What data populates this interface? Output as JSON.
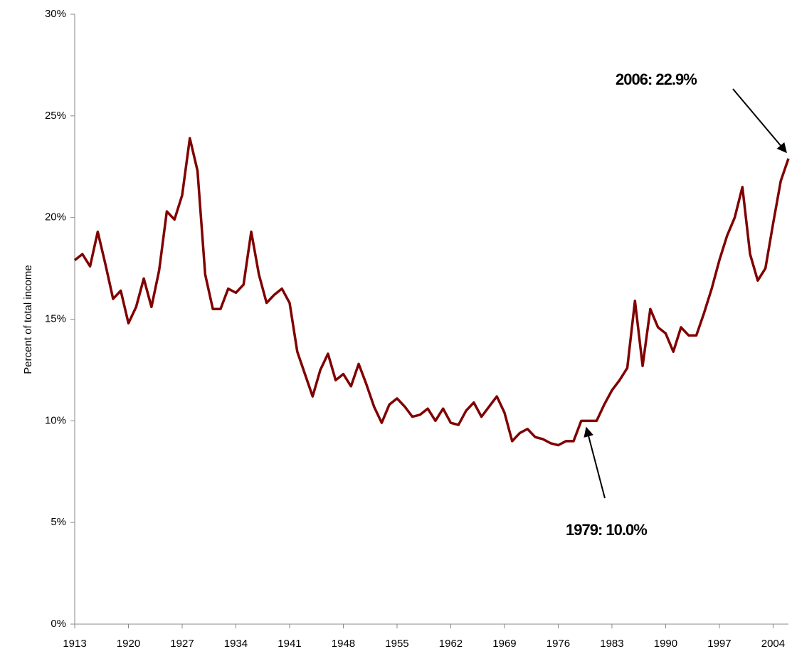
{
  "chart_data": {
    "type": "line",
    "y_label": "Percent of total income",
    "x": [
      1913,
      1914,
      1915,
      1916,
      1917,
      1918,
      1919,
      1920,
      1921,
      1922,
      1923,
      1924,
      1925,
      1926,
      1927,
      1928,
      1929,
      1930,
      1931,
      1932,
      1933,
      1934,
      1935,
      1936,
      1937,
      1938,
      1939,
      1940,
      1941,
      1942,
      1943,
      1944,
      1945,
      1946,
      1947,
      1948,
      1949,
      1950,
      1951,
      1952,
      1953,
      1954,
      1955,
      1956,
      1957,
      1958,
      1959,
      1960,
      1961,
      1962,
      1963,
      1964,
      1965,
      1966,
      1967,
      1968,
      1969,
      1970,
      1971,
      1972,
      1973,
      1974,
      1975,
      1976,
      1977,
      1978,
      1979,
      1980,
      1981,
      1982,
      1983,
      1984,
      1985,
      1986,
      1987,
      1988,
      1989,
      1990,
      1991,
      1992,
      1993,
      1994,
      1995,
      1996,
      1997,
      1998,
      1999,
      2000,
      2001,
      2002,
      2003,
      2004,
      2005,
      2006
    ],
    "series": [
      {
        "color": "#800000",
        "values": [
          17.9,
          18.2,
          17.6,
          19.3,
          17.7,
          16.0,
          16.4,
          14.8,
          15.6,
          17.0,
          15.6,
          17.4,
          20.3,
          19.9,
          21.1,
          23.9,
          22.3,
          17.2,
          15.5,
          15.5,
          16.5,
          16.3,
          16.7,
          19.3,
          17.2,
          15.8,
          16.2,
          16.5,
          15.8,
          13.4,
          12.3,
          11.2,
          12.5,
          13.3,
          12.0,
          12.3,
          11.7,
          12.8,
          11.8,
          10.7,
          9.9,
          10.8,
          11.1,
          10.7,
          10.2,
          10.3,
          10.6,
          10.0,
          10.6,
          9.9,
          9.8,
          10.5,
          10.9,
          10.2,
          10.7,
          11.2,
          10.4,
          9.0,
          9.4,
          9.6,
          9.2,
          9.1,
          8.9,
          8.8,
          9.0,
          9.0,
          10.0,
          10.0,
          10.0,
          10.8,
          11.5,
          12.0,
          12.6,
          15.9,
          12.7,
          15.5,
          14.6,
          14.3,
          13.4,
          14.6,
          14.2,
          14.2,
          15.3,
          16.5,
          17.9,
          19.1,
          20.0,
          21.5,
          18.2,
          16.9,
          17.5,
          19.7,
          21.8,
          22.9
        ]
      }
    ],
    "xlim": [
      1913,
      2006
    ],
    "xticks": [
      1913,
      1920,
      1927,
      1934,
      1941,
      1948,
      1955,
      1962,
      1969,
      1976,
      1983,
      1990,
      1997,
      2004
    ],
    "ylim": [
      0,
      30
    ],
    "yticks": [
      {
        "value": 0,
        "label": "0%"
      },
      {
        "value": 5,
        "label": "5%"
      },
      {
        "value": 10,
        "label": "10%"
      },
      {
        "value": 15,
        "label": "15%"
      },
      {
        "value": 20,
        "label": "20%"
      },
      {
        "value": 25,
        "label": "25%"
      },
      {
        "value": 30,
        "label": "30%"
      }
    ],
    "annotations": [
      {
        "text": "2006: 22.9%"
      },
      {
        "text": "1979: 10.0%"
      }
    ]
  }
}
